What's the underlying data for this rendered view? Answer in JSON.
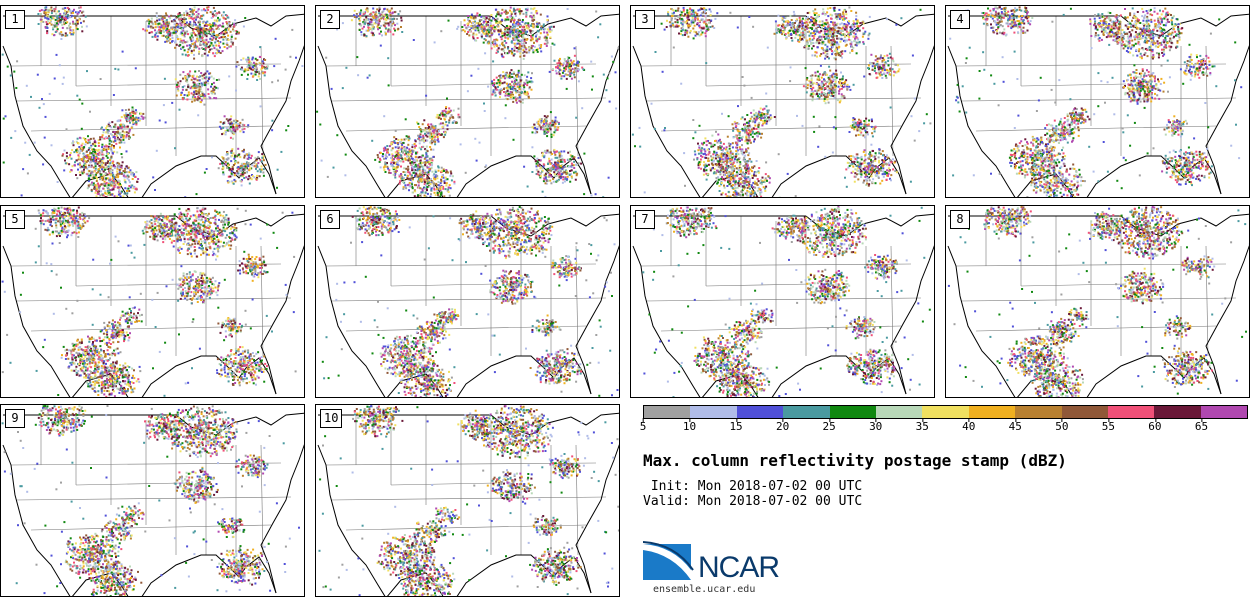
{
  "figure": {
    "title": "Max. column reflectivity postage stamp (dBZ)",
    "init": " Init: Mon 2018-07-02 00 UTC",
    "valid": "Valid: Mon 2018-07-02 00 UTC",
    "credit_url": "ensemble.ucar.edu",
    "logo_text": "NCAR"
  },
  "members": [
    "1",
    "2",
    "3",
    "4",
    "5",
    "6",
    "7",
    "8",
    "9",
    "10"
  ],
  "colorbar": {
    "unit": "dBZ",
    "tick_labels": [
      "5",
      "10",
      "15",
      "20",
      "25",
      "30",
      "35",
      "40",
      "45",
      "50",
      "55",
      "60",
      "65"
    ],
    "colors": [
      "#a0a0a0",
      "#b0bce8",
      "#5050d8",
      "#4a9aa0",
      "#108810",
      "#b8d8b8",
      "#f0e060",
      "#f0b020",
      "#b88030",
      "#905838",
      "#f05078",
      "#6a1838",
      "#b048b0"
    ]
  },
  "colors": {
    "ncar_blue": "#0a3a6b",
    "ncar_light": "#1a7ac8"
  }
}
